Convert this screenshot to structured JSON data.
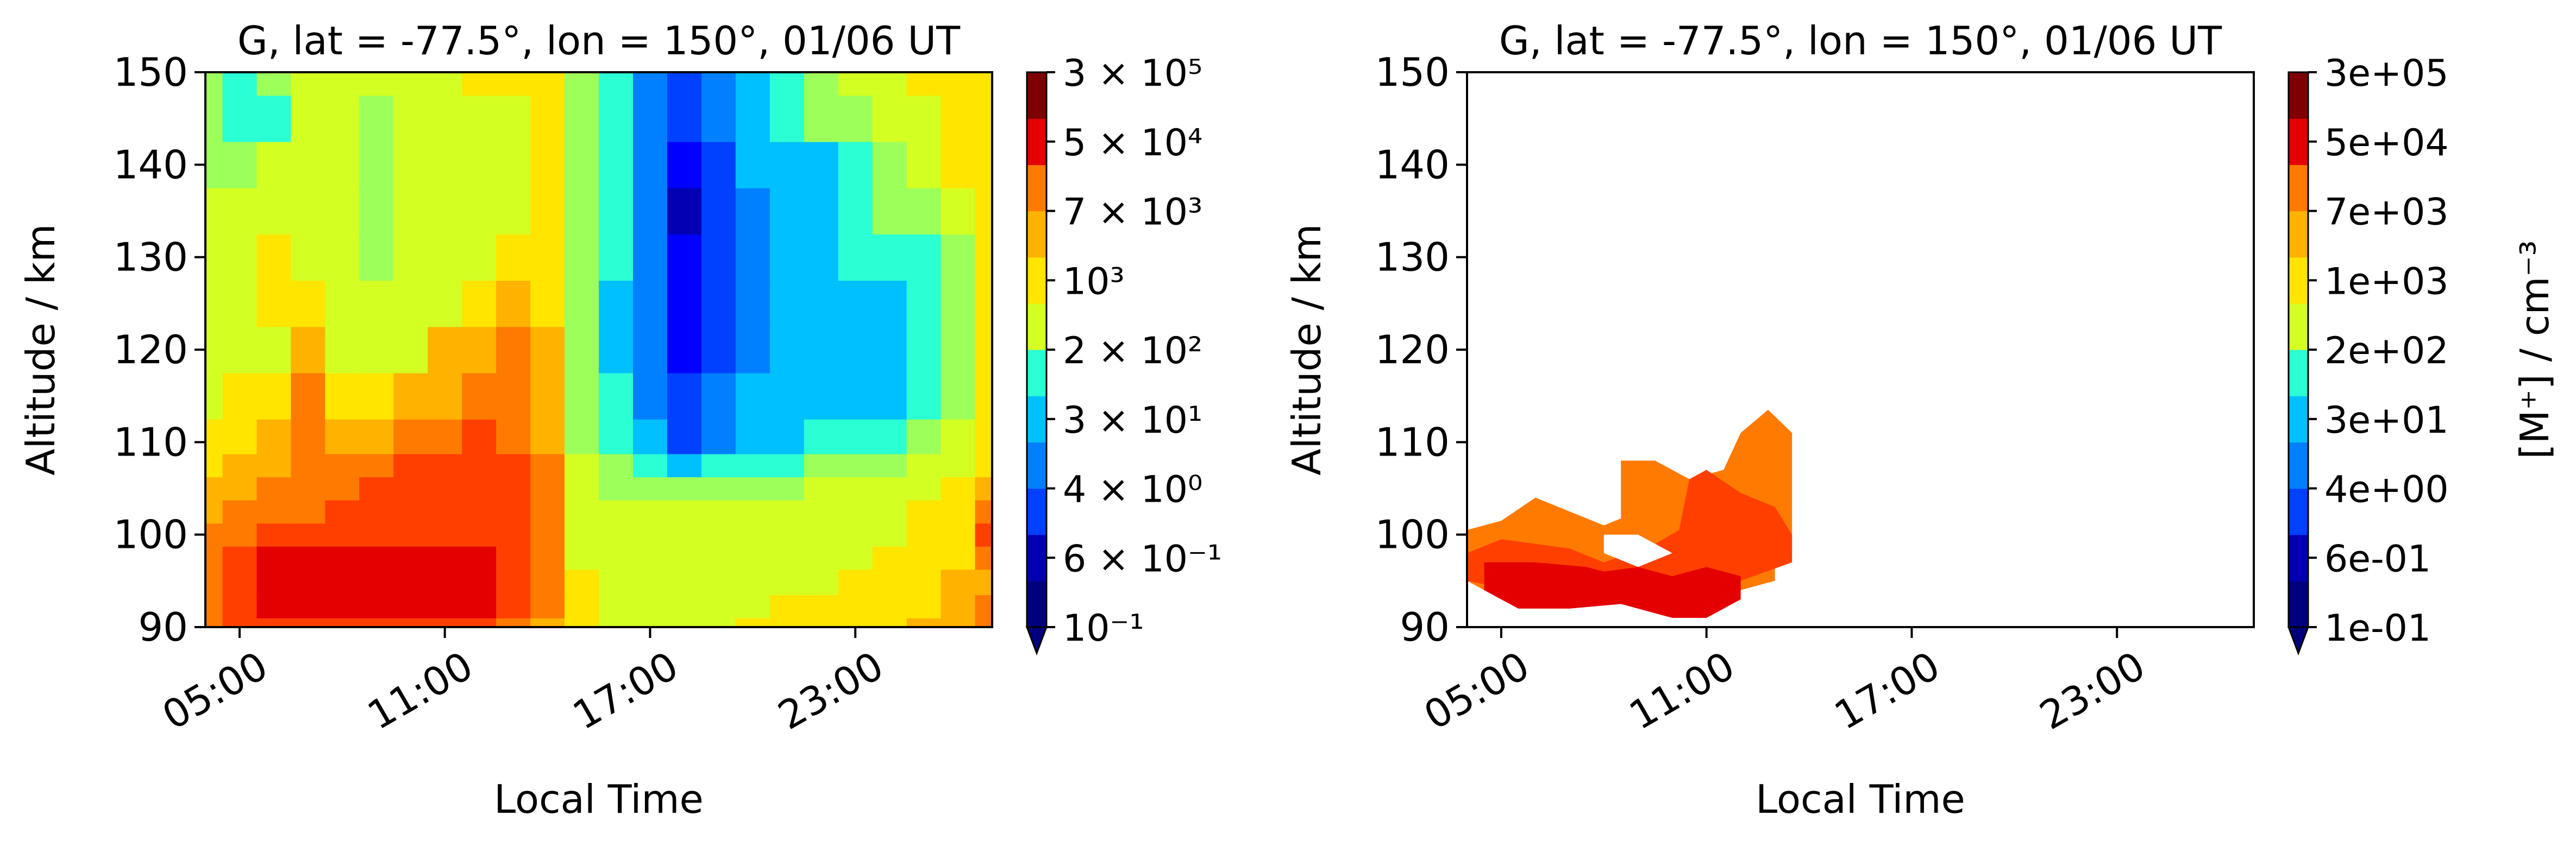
{
  "figure": {
    "layout": "two contour panels side by side, each with its own colorbar"
  },
  "colorscale": {
    "name": "jet",
    "levels": 12,
    "extend": "min",
    "colors": [
      "#00007f",
      "#0000b2",
      "#0000ff",
      "#0040ff",
      "#0080ff",
      "#00c0ff",
      "#2bffd4",
      "#9dff5a",
      "#d4ff23",
      "#ffe500",
      "#ffb200",
      "#ff7a00",
      "#ff3f00",
      "#e40000",
      "#7f0000"
    ]
  },
  "chart_data": [
    {
      "type": "heatmap",
      "subtype": "filled-contour",
      "title": "G, lat = -77.5°, lon = 150°, 01/06 UT",
      "xlabel": "Local Time",
      "ylabel": "Altitude / km",
      "x_ticks": [
        "05:00",
        "11:00",
        "17:00",
        "23:00"
      ],
      "x_tick_hours": [
        5,
        11,
        17,
        23
      ],
      "xlim_hours": [
        4,
        27
      ],
      "y_ticks": [
        90,
        100,
        110,
        120,
        130,
        140,
        150
      ],
      "ylim": [
        90,
        150
      ],
      "colorbar": {
        "label": "",
        "tick_labels": [
          {
            "value": 300000.0,
            "text": "3 × 10⁵"
          },
          {
            "value": 50000.0,
            "text": "5 × 10⁴"
          },
          {
            "value": 7000.0,
            "text": "7 × 10³"
          },
          {
            "value": 1000.0,
            "text": "10³"
          },
          {
            "value": 200.0,
            "text": "2 × 10²"
          },
          {
            "value": 30.0,
            "text": "3 × 10¹"
          },
          {
            "value": 4.0,
            "text": "4 × 10⁰"
          },
          {
            "value": 0.6,
            "text": "6 × 10⁻¹"
          },
          {
            "value": 0.1,
            "text": "10⁻¹"
          }
        ]
      },
      "time_hours": [
        4,
        5,
        6,
        7,
        8,
        9,
        10,
        11,
        12,
        13,
        14,
        15,
        16,
        17,
        18,
        19,
        20,
        21,
        22,
        23,
        24,
        25,
        26,
        27
      ],
      "altitude_km": [
        90,
        92,
        95,
        97.5,
        100,
        102.5,
        105,
        107.5,
        110,
        115,
        120,
        125,
        130,
        135,
        140,
        145,
        150
      ],
      "level_index_grid": [
        [
          11,
          12,
          12,
          12,
          12,
          12,
          12,
          12,
          12,
          11,
          10,
          9,
          8,
          8,
          8,
          8,
          9,
          9,
          9,
          9,
          9,
          10,
          10,
          11
        ],
        [
          11,
          12,
          13,
          13,
          13,
          13,
          13,
          13,
          13,
          12,
          11,
          9,
          8,
          8,
          8,
          8,
          8,
          9,
          9,
          9,
          9,
          9,
          10,
          11
        ],
        [
          11,
          12,
          13,
          13,
          13,
          13,
          13,
          13,
          13,
          12,
          11,
          9,
          8,
          8,
          8,
          8,
          8,
          8,
          8,
          9,
          9,
          9,
          10,
          10
        ],
        [
          11,
          12,
          13,
          13,
          13,
          13,
          13,
          13,
          13,
          12,
          11,
          8,
          8,
          8,
          8,
          8,
          8,
          8,
          8,
          8,
          9,
          9,
          9,
          11
        ],
        [
          11,
          11,
          12,
          12,
          12,
          12,
          12,
          12,
          12,
          12,
          11,
          8,
          8,
          8,
          8,
          8,
          8,
          8,
          8,
          8,
          8,
          9,
          9,
          12
        ],
        [
          10,
          11,
          11,
          11,
          12,
          12,
          12,
          12,
          12,
          12,
          11,
          8,
          8,
          8,
          8,
          8,
          8,
          8,
          8,
          8,
          8,
          9,
          9,
          11
        ],
        [
          10,
          10,
          11,
          11,
          11,
          12,
          12,
          12,
          12,
          12,
          11,
          8,
          7,
          7,
          7,
          7,
          7,
          7,
          8,
          8,
          8,
          8,
          9,
          10
        ],
        [
          9,
          10,
          10,
          11,
          11,
          11,
          12,
          12,
          12,
          12,
          11,
          8,
          7,
          6,
          5,
          6,
          6,
          6,
          7,
          7,
          7,
          8,
          8,
          9
        ],
        [
          9,
          9,
          10,
          11,
          10,
          10,
          11,
          11,
          12,
          11,
          10,
          7,
          6,
          5,
          3,
          4,
          5,
          5,
          6,
          6,
          6,
          7,
          8,
          9
        ],
        [
          8,
          9,
          9,
          11,
          9,
          9,
          10,
          10,
          11,
          11,
          10,
          7,
          6,
          4,
          3,
          4,
          5,
          5,
          5,
          5,
          5,
          6,
          7,
          9
        ],
        [
          8,
          8,
          8,
          10,
          8,
          8,
          8,
          10,
          10,
          11,
          10,
          7,
          5,
          4,
          2,
          3,
          4,
          5,
          5,
          5,
          5,
          6,
          7,
          9
        ],
        [
          8,
          8,
          9,
          9,
          8,
          8,
          8,
          8,
          9,
          10,
          9,
          7,
          5,
          4,
          2,
          3,
          4,
          5,
          5,
          5,
          5,
          6,
          7,
          9
        ],
        [
          8,
          8,
          9,
          8,
          8,
          7,
          8,
          8,
          8,
          9,
          9,
          7,
          6,
          4,
          2,
          3,
          4,
          5,
          5,
          6,
          6,
          6,
          7,
          9
        ],
        [
          8,
          8,
          8,
          8,
          8,
          7,
          8,
          8,
          8,
          8,
          9,
          7,
          6,
          4,
          1,
          3,
          4,
          5,
          5,
          6,
          7,
          7,
          8,
          9
        ],
        [
          7,
          7,
          8,
          8,
          8,
          7,
          8,
          8,
          8,
          8,
          9,
          7,
          6,
          4,
          2,
          3,
          5,
          5,
          5,
          6,
          7,
          8,
          9,
          9
        ],
        [
          7,
          6,
          6,
          8,
          8,
          7,
          8,
          8,
          8,
          8,
          9,
          7,
          6,
          4,
          3,
          4,
          5,
          6,
          7,
          7,
          8,
          8,
          9,
          9
        ],
        [
          7,
          6,
          7,
          8,
          8,
          8,
          8,
          8,
          9,
          9,
          9,
          7,
          6,
          4,
          3,
          4,
          5,
          6,
          7,
          8,
          8,
          9,
          9,
          9
        ]
      ]
    },
    {
      "type": "heatmap",
      "subtype": "filled-contour",
      "title": "G, lat = -77.5°, lon = 150°, 01/06 UT",
      "xlabel": "Local Time",
      "ylabel": "Altitude / km",
      "x_ticks": [
        "05:00",
        "11:00",
        "17:00",
        "23:00"
      ],
      "x_tick_hours": [
        5,
        11,
        17,
        23
      ],
      "xlim_hours": [
        4,
        27
      ],
      "y_ticks": [
        90,
        100,
        110,
        120,
        130,
        140,
        150
      ],
      "ylim": [
        90,
        150
      ],
      "colorbar": {
        "label": "[M⁺] / cm⁻³",
        "tick_labels": [
          {
            "value": 300000.0,
            "text": "3e+05"
          },
          {
            "value": 50000.0,
            "text": "5e+04"
          },
          {
            "value": 7000.0,
            "text": "7e+03"
          },
          {
            "value": 1000.0,
            "text": "1e+03"
          },
          {
            "value": 200.0,
            "text": "2e+02"
          },
          {
            "value": 30.0,
            "text": "3e+01"
          },
          {
            "value": 4.0,
            "text": "4e+00"
          },
          {
            "value": 0.6,
            "text": "6e-01"
          },
          {
            "value": 0.1,
            "text": "1e-01"
          }
        ]
      },
      "regions": [
        {
          "level_index": 11,
          "points": [
            [
              4,
              95
            ],
            [
              4,
              100.5
            ],
            [
              5,
              101.5
            ],
            [
              6,
              104
            ],
            [
              7,
              102.5
            ],
            [
              8,
              101
            ],
            [
              9,
              102.5
            ],
            [
              10,
              100
            ],
            [
              12,
              98
            ],
            [
              13,
              97.5
            ],
            [
              13,
              95
            ],
            [
              11,
              93
            ],
            [
              10,
              92
            ],
            [
              9,
              94
            ],
            [
              7,
              93
            ],
            [
              5,
              93
            ]
          ]
        },
        {
          "level_index": 11,
          "points": [
            [
              8.5,
              101
            ],
            [
              8.5,
              108
            ],
            [
              9.5,
              108
            ],
            [
              10.5,
              106
            ],
            [
              11.5,
              107
            ],
            [
              12,
              111
            ],
            [
              12.8,
              113.5
            ],
            [
              13.5,
              111
            ],
            [
              13.5,
              98
            ],
            [
              12,
              97.5
            ],
            [
              10,
              99
            ]
          ]
        },
        {
          "level_index": 12,
          "points": [
            [
              4,
              95
            ],
            [
              4,
              98
            ],
            [
              5,
              99.5
            ],
            [
              6,
              99
            ],
            [
              7,
              98.5
            ],
            [
              8,
              97
            ],
            [
              9.5,
              99
            ],
            [
              10.2,
              100.5
            ],
            [
              10.5,
              106
            ],
            [
              11,
              107
            ],
            [
              12,
              104.5
            ],
            [
              13,
              103
            ],
            [
              13.5,
              100
            ],
            [
              13.5,
              97
            ],
            [
              12,
              95
            ],
            [
              11,
              94
            ],
            [
              10,
              92
            ],
            [
              8,
              93
            ],
            [
              6,
              93.5
            ]
          ]
        },
        {
          "level_index": 13,
          "points": [
            [
              4.5,
              94
            ],
            [
              4.5,
              97
            ],
            [
              6,
              97
            ],
            [
              7.5,
              96.5
            ],
            [
              8,
              96
            ],
            [
              9,
              96.5
            ],
            [
              10,
              95.5
            ],
            [
              11,
              96.5
            ],
            [
              12,
              95.5
            ],
            [
              12,
              93
            ],
            [
              11,
              91
            ],
            [
              10,
              91
            ],
            [
              8.5,
              92.5
            ],
            [
              7,
              92
            ],
            [
              5.5,
              92
            ]
          ]
        },
        {
          "level_index": -1,
          "points": [
            [
              8,
              98
            ],
            [
              9,
              96.5
            ],
            [
              10,
              98
            ],
            [
              9,
              100
            ],
            [
              8,
              100
            ]
          ]
        }
      ]
    }
  ]
}
